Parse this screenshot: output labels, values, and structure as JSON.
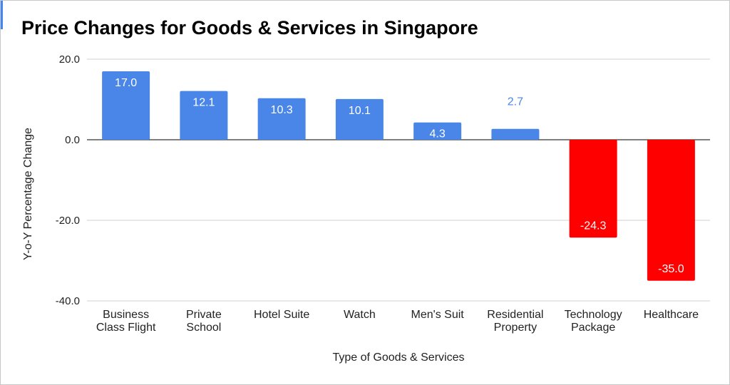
{
  "chart_data": {
    "type": "bar",
    "title": "Price Changes for Goods & Services in Singapore",
    "xlabel": "Type of Goods & Services",
    "ylabel": "Y-o-Y Percentage Change",
    "ylim": [
      -40,
      20
    ],
    "yticks": [
      20,
      0,
      -20,
      -40
    ],
    "ytick_labels": [
      "20.0",
      "0.0",
      "-20.0",
      "-40.0"
    ],
    "grid": true,
    "categories": [
      [
        "Business",
        "Class Flight"
      ],
      [
        "Private",
        "School"
      ],
      [
        "Hotel Suite"
      ],
      [
        "Watch"
      ],
      [
        "Men's Suit"
      ],
      [
        "Residential",
        "Property"
      ],
      [
        "Technology",
        "Package"
      ],
      [
        "Healthcare"
      ]
    ],
    "values": [
      17.0,
      12.1,
      10.3,
      10.1,
      4.3,
      2.7,
      -24.3,
      -35.0
    ],
    "value_labels": [
      "17.0",
      "12.1",
      "10.3",
      "10.1",
      "4.3",
      "2.7",
      "-24.3",
      "-35.0"
    ],
    "colors": {
      "positive": "#4a86e8",
      "negative": "#ff0000",
      "label_inside": "#ffffff",
      "label_outside": "#4a86e8",
      "grid": "#d0d0d0",
      "zero_line": "#333333"
    }
  }
}
